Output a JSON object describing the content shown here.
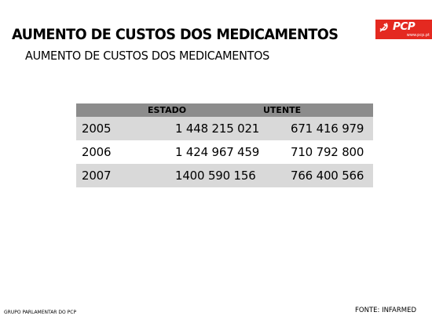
{
  "header": {
    "title": "AUMENTO DE CUSTOS DOS MEDICAMENTOS",
    "subtitle": "AUMENTO DE CUSTOS DOS MEDICAMENTOS"
  },
  "logo": {
    "text": "PCP",
    "url": "www.pcp.pt",
    "icon": "hammer-sickle-icon",
    "color": "#e42920"
  },
  "table": {
    "headers": {
      "estado": "ESTADO",
      "utente": "UTENTE"
    },
    "rows": [
      {
        "year": "2005",
        "estado": "1 448 215 021",
        "utente": "671 416 979"
      },
      {
        "year": "2006",
        "estado": "1 424 967 459",
        "utente": "710 792 800"
      },
      {
        "year": "2007",
        "estado": "1400 590 156",
        "utente": "766 400 566"
      }
    ],
    "header_color": "#8c8c8c",
    "shade_color": "#d9d9d9"
  },
  "footer": {
    "left": "GRUPO PARLAMENTAR DO PCP",
    "right": "FONTE: INFARMED"
  }
}
